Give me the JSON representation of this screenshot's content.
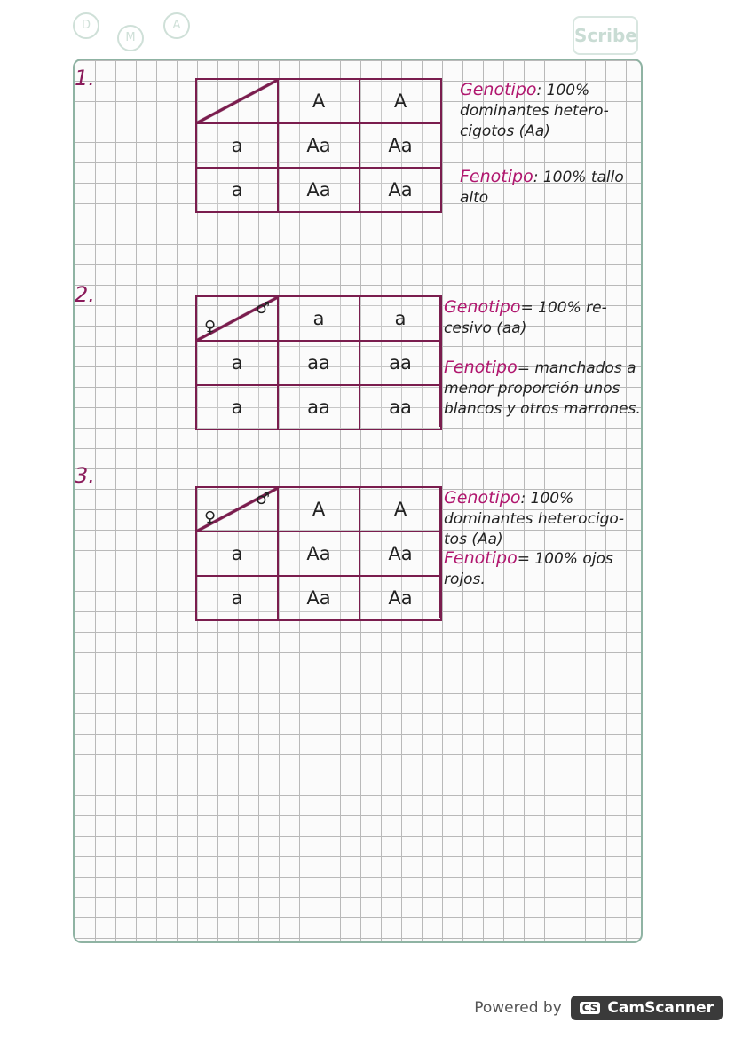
{
  "header": {
    "logo": "Scribe",
    "circles": [
      "D",
      "M",
      "A"
    ]
  },
  "problems": [
    {
      "number": "1.",
      "corner": {
        "female": "",
        "male": ""
      },
      "cols": [
        "A",
        "A"
      ],
      "rows": [
        {
          "h": "a",
          "cells": [
            "Aa",
            "Aa"
          ]
        },
        {
          "h": "a",
          "cells": [
            "Aa",
            "Aa"
          ]
        }
      ],
      "genotype_label": "Genotipo",
      "genotype": ": 100% dominantes hetero-cigotos (Aa)",
      "phenotype_label": "Fenotipo",
      "phenotype": ": 100% tallo alto"
    },
    {
      "number": "2.",
      "corner": {
        "female": "♀",
        "male": "♂"
      },
      "cols": [
        "a",
        "a"
      ],
      "rows": [
        {
          "h": "a",
          "cells": [
            "aa",
            "aa"
          ]
        },
        {
          "h": "a",
          "cells": [
            "aa",
            "aa"
          ]
        }
      ],
      "genotype_label": "Genotipo",
      "genotype": "= 100% re-cesivo (aa)",
      "phenotype_label": "Fenotipo",
      "phenotype": "= manchados a menor proporción unos blancos y otros marrones."
    },
    {
      "number": "3.",
      "corner": {
        "female": "♀",
        "male": "♂"
      },
      "cols": [
        "A",
        "A"
      ],
      "rows": [
        {
          "h": "a",
          "cells": [
            "Aa",
            "Aa"
          ]
        },
        {
          "h": "a",
          "cells": [
            "Aa",
            "Aa"
          ]
        }
      ],
      "genotype_label": "Genotipo",
      "genotype": ": 100% dominantes heterocigo-tos (Aa)",
      "phenotype_label": "Fenotipo",
      "phenotype": "= 100% ojos rojos."
    }
  ],
  "footer": {
    "powered": "Powered by",
    "brand_badge": "CS",
    "brand": "CamScanner"
  }
}
